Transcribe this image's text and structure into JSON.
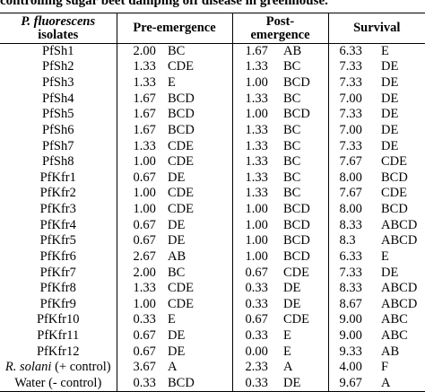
{
  "caption": "controlling sugar beet damping off disease in greenhouse.",
  "headers": {
    "isolates_line1": "P. fluorescens",
    "isolates_line2": "isolates",
    "pre": "Pre-emergence",
    "post_line1": "Post-",
    "post_line2": "emergence",
    "survival": "Survival"
  },
  "rows": [
    {
      "isolate": "PfSh1",
      "pre": "2.00",
      "pre_g": "BC",
      "post": "1.67",
      "post_g": "AB",
      "surv": "6.33",
      "surv_g": "E"
    },
    {
      "isolate": "PfSh2",
      "pre": "1.33",
      "pre_g": "CDE",
      "post": "1.33",
      "post_g": "BC",
      "surv": "7.33",
      "surv_g": "DE"
    },
    {
      "isolate": "PfSh3",
      "pre": "1.33",
      "pre_g": "E",
      "post": "1.00",
      "post_g": "BCD",
      "surv": "7.33",
      "surv_g": "DE"
    },
    {
      "isolate": "PfSh4",
      "pre": "1.67",
      "pre_g": "BCD",
      "post": "1.33",
      "post_g": "BC",
      "surv": "7.00",
      "surv_g": "DE"
    },
    {
      "isolate": "PfSh5",
      "pre": "1.67",
      "pre_g": "BCD",
      "post": "1.00",
      "post_g": "BCD",
      "surv": "7.33",
      "surv_g": "DE"
    },
    {
      "isolate": "PfSh6",
      "pre": "1.67",
      "pre_g": "BCD",
      "post": "1.33",
      "post_g": "BC",
      "surv": "7.00",
      "surv_g": "DE"
    },
    {
      "isolate": "PfSh7",
      "pre": "1.33",
      "pre_g": "CDE",
      "post": "1.33",
      "post_g": "BC",
      "surv": "7.33",
      "surv_g": "DE"
    },
    {
      "isolate": "PfSh8",
      "pre": "1.00",
      "pre_g": "CDE",
      "post": "1.33",
      "post_g": "BC",
      "surv": "7.67",
      "surv_g": "CDE"
    },
    {
      "isolate": "PfKfr1",
      "pre": "0.67",
      "pre_g": "DE",
      "post": "1.33",
      "post_g": "BC",
      "surv": "8.00",
      "surv_g": "BCD"
    },
    {
      "isolate": "PfKfr2",
      "pre": "1.00",
      "pre_g": "CDE",
      "post": "1.33",
      "post_g": "BC",
      "surv": "7.67",
      "surv_g": "CDE"
    },
    {
      "isolate": "PfKfr3",
      "pre": "1.00",
      "pre_g": "CDE",
      "post": "1.00",
      "post_g": "BCD",
      "surv": "8.00",
      "surv_g": "BCD"
    },
    {
      "isolate": "PfKfr4",
      "pre": "0.67",
      "pre_g": "DE",
      "post": "1.00",
      "post_g": "BCD",
      "surv": "8.33",
      "surv_g": "ABCD"
    },
    {
      "isolate": "PfKfr5",
      "pre": "0.67",
      "pre_g": "DE",
      "post": "1.00",
      "post_g": "BCD",
      "surv": "8.3",
      "surv_g": "ABCD"
    },
    {
      "isolate": "PfKfr6",
      "pre": "2.67",
      "pre_g": "AB",
      "post": "1.00",
      "post_g": "BCD",
      "surv": "6.33",
      "surv_g": "E"
    },
    {
      "isolate": "PfKfr7",
      "pre": "2.00",
      "pre_g": "BC",
      "post": "0.67",
      "post_g": "CDE",
      "surv": "7.33",
      "surv_g": "DE"
    },
    {
      "isolate": "PfKfr8",
      "pre": "1.33",
      "pre_g": "CDE",
      "post": "0.33",
      "post_g": "DE",
      "surv": "8.33",
      "surv_g": "ABCD"
    },
    {
      "isolate": "PfKfr9",
      "pre": "1.00",
      "pre_g": "CDE",
      "post": "0.33",
      "post_g": "DE",
      "surv": "8.67",
      "surv_g": "ABCD"
    },
    {
      "isolate": "PfKfr10",
      "pre": "0.33",
      "pre_g": "E",
      "post": "0.67",
      "post_g": "CDE",
      "surv": "9.00",
      "surv_g": "ABC"
    },
    {
      "isolate": "PfKfr11",
      "pre": "0.67",
      "pre_g": "DE",
      "post": "0.33",
      "post_g": "E",
      "surv": "9.00",
      "surv_g": "ABC"
    },
    {
      "isolate": "PfKfr12",
      "pre": "0.67",
      "pre_g": "DE",
      "post": "0.00",
      "post_g": "E",
      "surv": "9.33",
      "surv_g": "AB"
    },
    {
      "isolate_italic": "R. solani",
      "isolate_rest": " (+ control)",
      "pre": "3.67",
      "pre_g": "A",
      "post": "2.33",
      "post_g": "A",
      "surv": "4.00",
      "surv_g": "F"
    },
    {
      "isolate": "Water (- control)",
      "pre": "0.33",
      "pre_g": "BCD",
      "post": "0.33",
      "post_g": "DE",
      "surv": "9.67",
      "surv_g": "A"
    }
  ]
}
